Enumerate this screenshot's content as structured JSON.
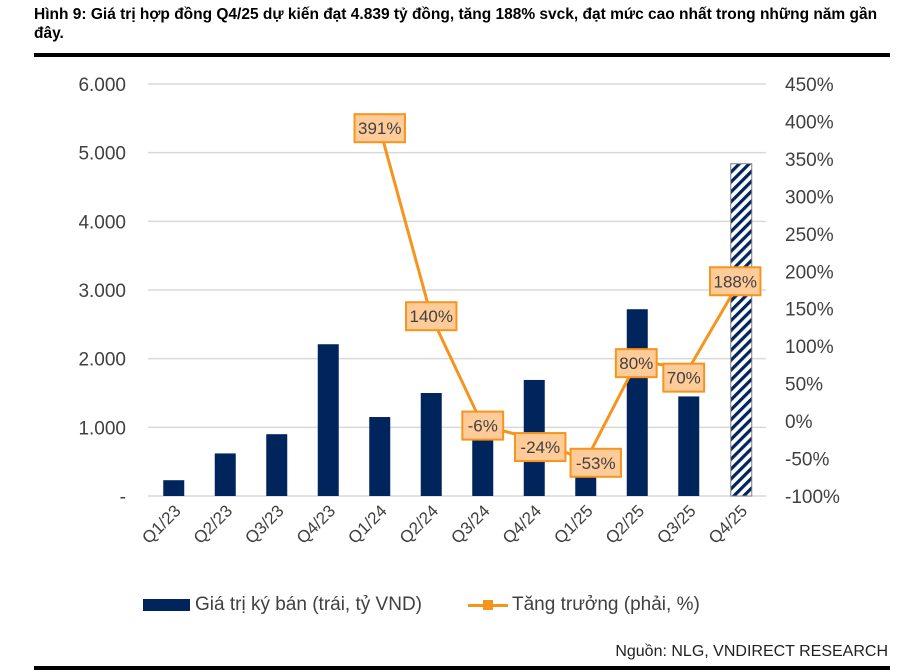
{
  "title": "Hình 9: Giá trị hợp đồng Q4/25 dự kiến đạt 4.839 tỷ đồng, tăng 188% svck, đạt mức cao nhất trong những năm gần đây.",
  "source": "Nguồn: NLG, VNDIRECT RESEARCH",
  "colors": {
    "bar": "#00245c",
    "line": "#f7941d",
    "label_fill": "#ffcc99",
    "label_border": "#f7941d",
    "grid": "#d9d9d9",
    "text": "#404040"
  },
  "legend": {
    "bar_label": "Giá trị ký bán (trái, tỷ VND)",
    "line_label": "Tăng trưởng (phải, %)"
  },
  "chart_data": {
    "type": "bar+line",
    "title": "Hình 9: Giá trị hợp đồng Q4/25 dự kiến đạt 4.839 tỷ đồng, tăng 188% svck, đạt mức cao nhất trong những năm gần đây.",
    "categories": [
      "Q1/23",
      "Q2/23",
      "Q3/23",
      "Q4/23",
      "Q1/24",
      "Q2/24",
      "Q3/24",
      "Q4/24",
      "Q1/25",
      "Q2/25",
      "Q3/25",
      "Q4/25"
    ],
    "series": [
      {
        "name": "Giá trị ký bán (trái, tỷ VND)",
        "type": "bar",
        "axis": "left",
        "values": [
          230,
          620,
          900,
          2210,
          1150,
          1500,
          850,
          1690,
          540,
          2720,
          1450,
          4839
        ],
        "hatched_last": true
      },
      {
        "name": "Tăng trưởng (phải, %)",
        "type": "line",
        "axis": "right",
        "values": [
          null,
          null,
          null,
          null,
          391,
          140,
          -6,
          -24,
          -53,
          80,
          70,
          188
        ],
        "data_labels": [
          "",
          "",
          "",
          "",
          "391%",
          "140%",
          "-6%",
          "-24%",
          "-53%",
          "80%",
          "70%",
          "188%"
        ]
      }
    ],
    "left_axis": {
      "ylim": [
        0,
        6000
      ],
      "ticks": [
        0,
        1000,
        2000,
        3000,
        4000,
        5000,
        6000
      ],
      "tick_labels": [
        "-",
        "1.000",
        "2.000",
        "3.000",
        "4.000",
        "5.000",
        "6.000"
      ]
    },
    "right_axis": {
      "ylim": [
        -100,
        450
      ],
      "ticks": [
        -100,
        -50,
        0,
        50,
        100,
        150,
        200,
        250,
        300,
        350,
        400,
        450
      ],
      "tick_labels": [
        "-100%",
        "-50%",
        "0%",
        "50%",
        "100%",
        "150%",
        "200%",
        "250%",
        "300%",
        "350%",
        "400%",
        "450%"
      ]
    },
    "xlabel": "",
    "ylabel": "",
    "grid": true,
    "legend_position": "bottom"
  }
}
